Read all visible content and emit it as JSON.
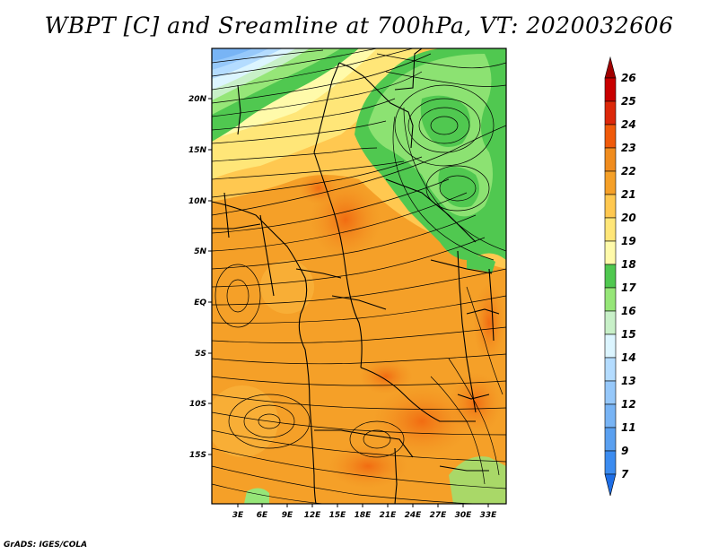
{
  "title": "WBPT [C] and Sreamline at 700hPa, VT: 2020032606",
  "footer": "GrADS: IGES/COLA",
  "map": {
    "lat_labels": [
      "20N",
      "15N",
      "10N",
      "5N",
      "EQ",
      "5S",
      "10S",
      "15S"
    ],
    "lon_labels": [
      "3E",
      "6E",
      "9E",
      "12E",
      "15E",
      "18E",
      "21E",
      "24E",
      "27E",
      "30E",
      "33E"
    ]
  },
  "colorbar": {
    "levels": [
      "7",
      "9",
      "11",
      "12",
      "13",
      "14",
      "15",
      "16",
      "17",
      "18",
      "19",
      "20",
      "21",
      "22",
      "23",
      "24",
      "25",
      "26"
    ],
    "colors": {
      "below_7": "#1e6ee6",
      "7_9": "#3c8cf0",
      "9_11": "#5aa0f0",
      "11_12": "#78b4f5",
      "12_13": "#96c8fa",
      "13_14": "#b4dcff",
      "14_15": "#dcf5ff",
      "15_16": "#c8f0c8",
      "16_17": "#96e678",
      "17_18": "#50c850",
      "18_19": "#fffaaa",
      "19_20": "#ffe678",
      "20_21": "#ffc850",
      "21_22": "#f5a028",
      "22_23": "#f08c1e",
      "23_24": "#f05a0a",
      "24_25": "#dc280a",
      "25_26": "#c80000",
      "above_26": "#a00000"
    }
  }
}
